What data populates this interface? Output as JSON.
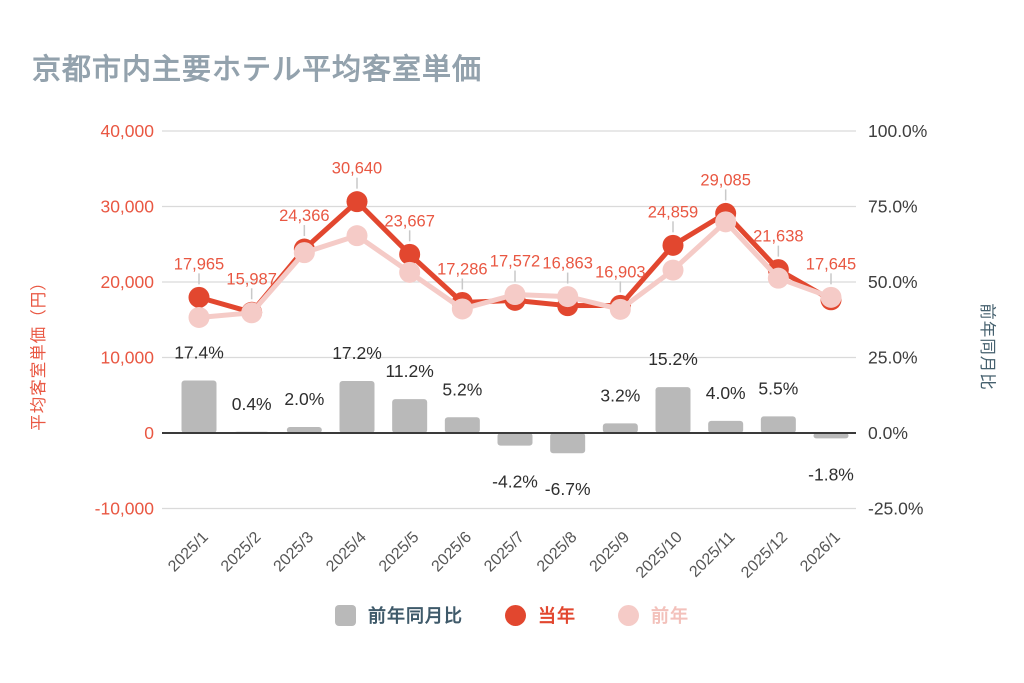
{
  "title": "京都市内主要ホテル平均客室単価",
  "colors": {
    "title": "#93a2ad",
    "current_year": "#e2472f",
    "red_text": "#e95742",
    "previous_year": "#f5cbc7",
    "previous_year_text": "#f3c1bb",
    "bar": "#b9b9b9",
    "bar_label": "#2e2e2e",
    "left_axis_text": "#e95742",
    "right_axis_text": "#3e3e3e",
    "right_axis_title": "#45606e",
    "legend_bar_text": "#3f5a6a",
    "x_axis_text": "#565656",
    "gridline": "#dadada",
    "zero_line": "#3a3a3a",
    "leader": "#c9c9c9"
  },
  "chart_data": {
    "type": "combo-bar-line",
    "title": "京都市内主要ホテル平均客室単価",
    "grid": true,
    "categories": [
      "2025/1",
      "2025/2",
      "2025/3",
      "2025/4",
      "2025/5",
      "2025/6",
      "2025/7",
      "2025/8",
      "2025/9",
      "2025/10",
      "2025/11",
      "2025/12",
      "2026/1"
    ],
    "series": [
      {
        "name": "前年同月比",
        "type": "bar",
        "yaxis": "right",
        "unit": "%",
        "values": [
          17.4,
          0.4,
          2.0,
          17.2,
          11.2,
          5.2,
          -4.2,
          -6.7,
          3.2,
          15.2,
          4.0,
          5.5,
          -1.8
        ],
        "labels": [
          "17.4%",
          "0.4%",
          "2.0%",
          "17.2%",
          "11.2%",
          "5.2%",
          "-4.2%",
          "-6.7%",
          "3.2%",
          "15.2%",
          "4.0%",
          "5.5%",
          "-1.8%"
        ]
      },
      {
        "name": "当年",
        "type": "line",
        "yaxis": "left",
        "unit": "円",
        "values": [
          17965,
          15987,
          24366,
          30640,
          23667,
          17286,
          17572,
          16863,
          16903,
          24859,
          29085,
          21638,
          17645
        ],
        "labels": [
          "17,965",
          "15,987",
          "24,366",
          "30,640",
          "23,667",
          "17,286",
          "17,572",
          "16,863",
          "16,903",
          "24,859",
          "29,085",
          "21,638",
          "17,645"
        ]
      },
      {
        "name": "前年",
        "type": "line",
        "yaxis": "left",
        "unit": "円",
        "estimated": true,
        "values": [
          15300,
          15920,
          23890,
          26140,
          21280,
          16430,
          18340,
          18070,
          16380,
          21580,
          27970,
          20510,
          17970
        ]
      }
    ],
    "left_axis": {
      "title": "平均客室単価（円）",
      "tick_labels": [
        "40,000",
        "30,000",
        "20,000",
        "10,000",
        "0",
        "-10,000"
      ],
      "tick_values": [
        40000,
        30000,
        20000,
        10000,
        0,
        -10000
      ],
      "range": [
        -10000,
        40000
      ]
    },
    "right_axis": {
      "title": "前年同月比",
      "tick_labels": [
        "100.0%",
        "75.0%",
        "50.0%",
        "25.0%",
        "0.0%",
        "-25.0%"
      ],
      "tick_values": [
        100,
        75,
        50,
        25,
        0,
        -25
      ],
      "range": [
        -25,
        100
      ]
    },
    "legend": {
      "position": "bottom",
      "items": [
        {
          "label": "前年同月比",
          "swatch": "square"
        },
        {
          "label": "当年",
          "swatch": "circle"
        },
        {
          "label": "前年",
          "swatch": "circle"
        }
      ]
    }
  }
}
